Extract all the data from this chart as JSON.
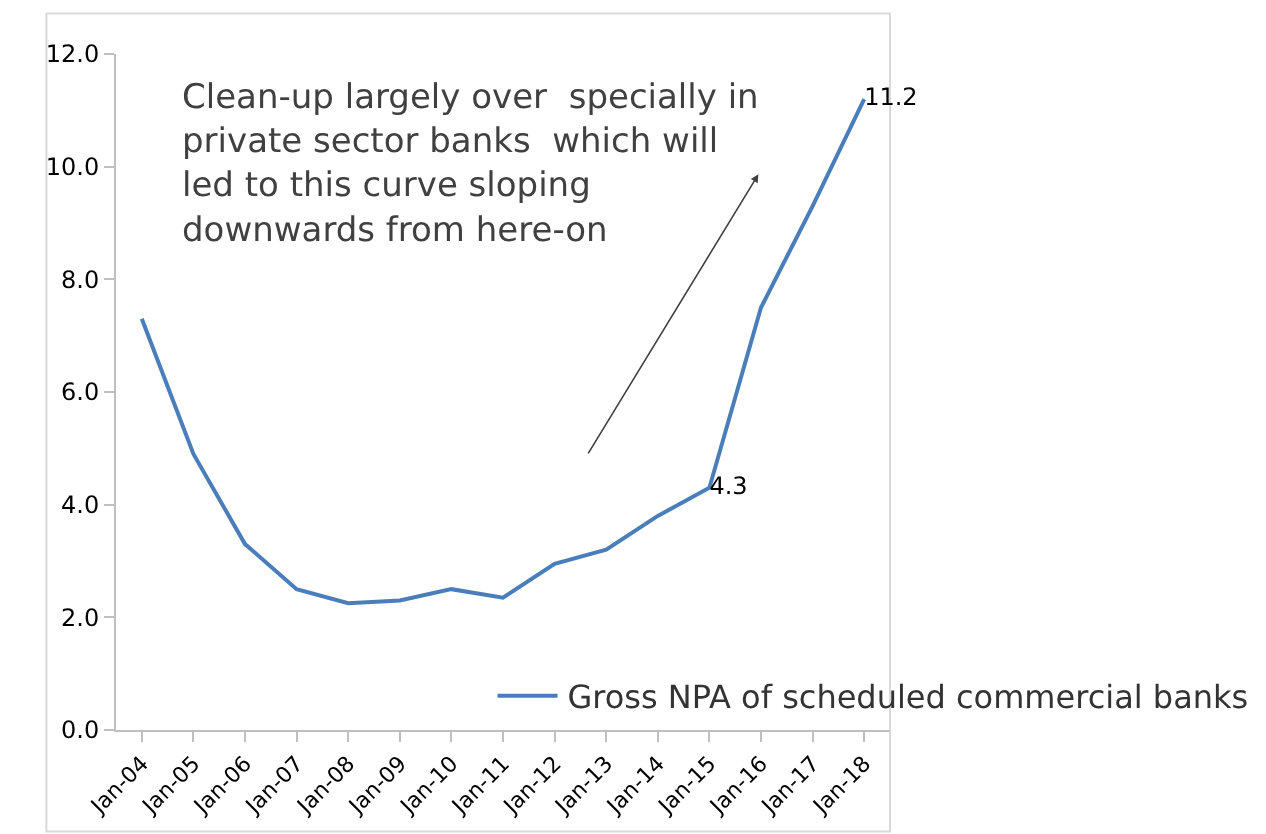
{
  "chart_data": {
    "type": "line",
    "categories": [
      "Jan-04",
      "Jan-05",
      "Jan-06",
      "Jan-07",
      "Jan-08",
      "Jan-09",
      "Jan-10",
      "Jan-11",
      "Jan-12",
      "Jan-13",
      "Jan-14",
      "Jan-15",
      "Jan-16",
      "Jan-17",
      "Jan-18"
    ],
    "series": [
      {
        "name": "Gross NPA of scheduled commercial banks",
        "color": "#4a7ebb",
        "values": [
          7.3,
          4.9,
          3.3,
          2.5,
          2.25,
          2.3,
          2.5,
          2.35,
          2.95,
          3.2,
          3.8,
          4.3,
          7.5,
          9.3,
          11.2
        ],
        "value_labels": [
          null,
          null,
          null,
          null,
          null,
          null,
          null,
          null,
          null,
          null,
          null,
          "4.3",
          null,
          null,
          "11.2"
        ]
      }
    ],
    "ylim": [
      0,
      12
    ],
    "yticks": [
      {
        "value": 0,
        "label": "0.0"
      },
      {
        "value": 2,
        "label": "2.0"
      },
      {
        "value": 4,
        "label": "4.0"
      },
      {
        "value": 6,
        "label": "6.0"
      },
      {
        "value": 8,
        "label": "8.0"
      },
      {
        "value": 10,
        "label": "10.0"
      },
      {
        "value": 12,
        "label": "12.0"
      }
    ],
    "annotations": [
      "Clean-up largely over  specially in\nprivate sector banks  which will\nled to this curve sloping\ndownwards from here-on"
    ],
    "grid": false,
    "legend": "bottom right",
    "marker": "none",
    "line_style": "solid"
  }
}
